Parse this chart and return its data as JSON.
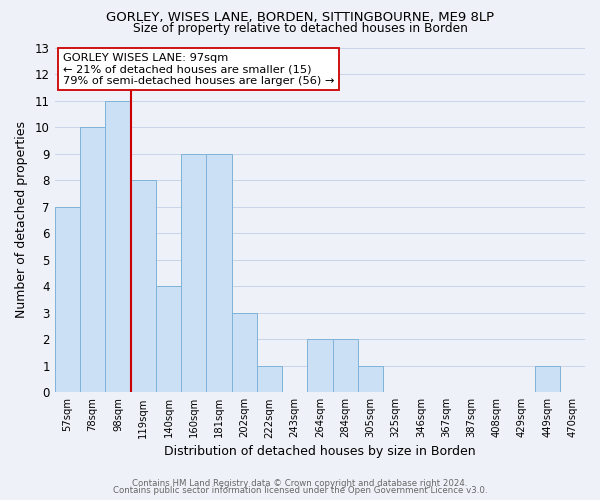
{
  "title": "GORLEY, WISES LANE, BORDEN, SITTINGBOURNE, ME9 8LP",
  "subtitle": "Size of property relative to detached houses in Borden",
  "xlabel": "Distribution of detached houses by size in Borden",
  "ylabel": "Number of detached properties",
  "bin_labels": [
    "57sqm",
    "78sqm",
    "98sqm",
    "119sqm",
    "140sqm",
    "160sqm",
    "181sqm",
    "202sqm",
    "222sqm",
    "243sqm",
    "264sqm",
    "284sqm",
    "305sqm",
    "325sqm",
    "346sqm",
    "367sqm",
    "387sqm",
    "408sqm",
    "429sqm",
    "449sqm",
    "470sqm"
  ],
  "bar_heights": [
    7,
    10,
    11,
    8,
    4,
    9,
    9,
    3,
    1,
    0,
    2,
    2,
    1,
    0,
    0,
    0,
    0,
    0,
    0,
    1,
    0
  ],
  "bar_color": "#cce0f5",
  "bar_edge_color": "#7fb3d9",
  "property_line_color": "#cc0000",
  "annotation_title": "GORLEY WISES LANE: 97sqm",
  "annotation_line1": "← 21% of detached houses are smaller (15)",
  "annotation_line2": "79% of semi-detached houses are larger (56) →",
  "annotation_box_color": "#ffffff",
  "annotation_box_edge": "#cc0000",
  "ylim": [
    0,
    13
  ],
  "footer1": "Contains HM Land Registry data © Crown copyright and database right 2024.",
  "footer2": "Contains public sector information licensed under the Open Government Licence v3.0.",
  "grid_color": "#c8d4e8",
  "background_color": "#eef2f8"
}
